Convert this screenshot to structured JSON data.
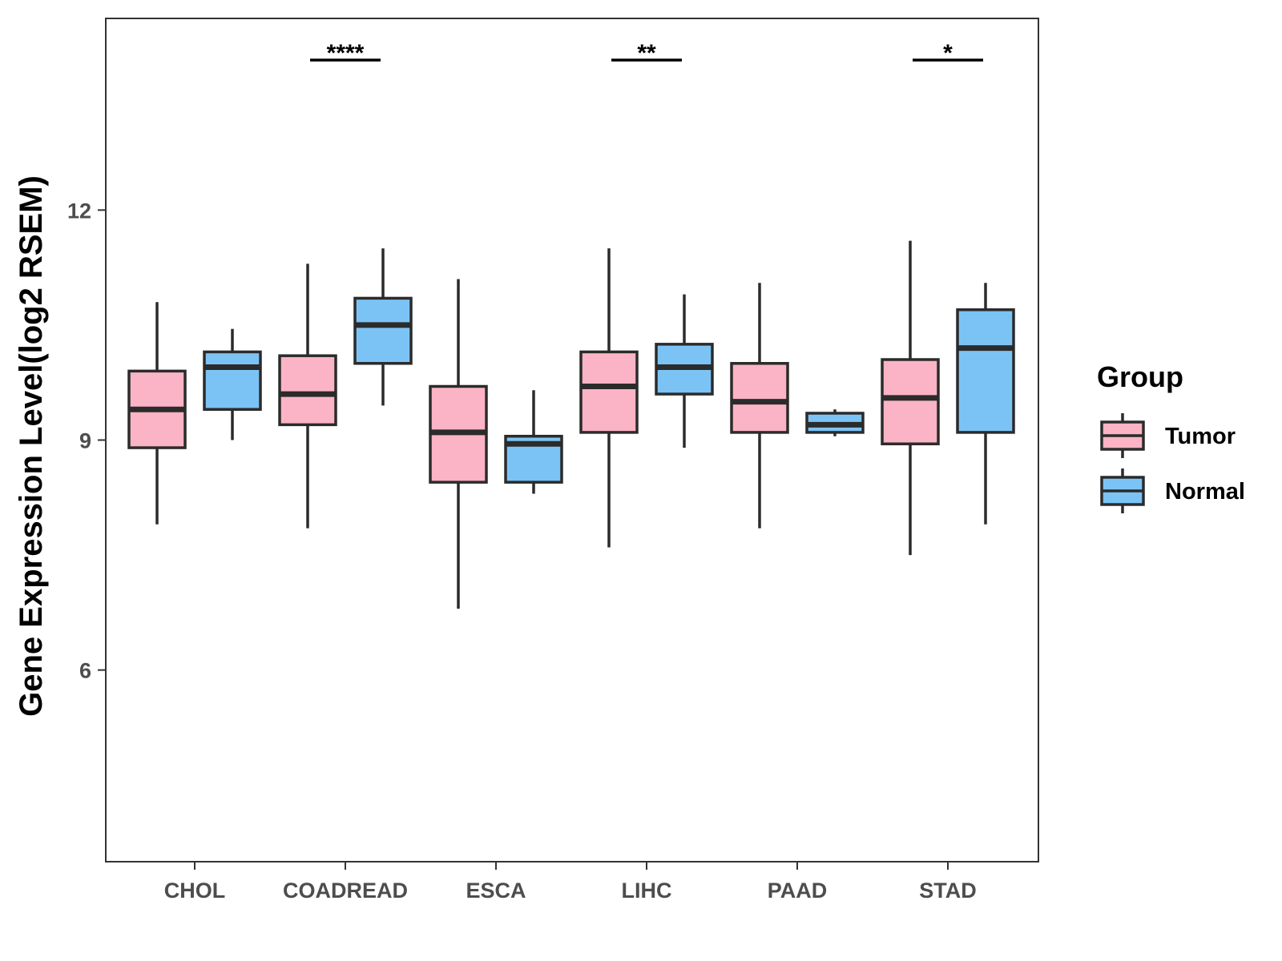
{
  "chart_data": {
    "type": "boxplot",
    "ylabel": "Gene Expression Level(log2 RSEM)",
    "xlabel": "",
    "ylim": [
      3.5,
      14.5
    ],
    "yticks": [
      6,
      9,
      12
    ],
    "grid": false,
    "categories": [
      "CHOL",
      "COADREAD",
      "ESCA",
      "LIHC",
      "PAAD",
      "STAD"
    ],
    "legend": {
      "title": "Group",
      "position": "right",
      "entries": [
        {
          "name": "Tumor",
          "color": "#fbb4c5"
        },
        {
          "name": "Normal",
          "color": "#7cc3f5"
        }
      ]
    },
    "series": [
      {
        "name": "Tumor",
        "color": "#fbb4c5",
        "boxes": [
          {
            "whisker_low": 7.9,
            "q1": 8.9,
            "median": 9.4,
            "q3": 9.9,
            "whisker_high": 10.8
          },
          {
            "whisker_low": 7.85,
            "q1": 9.2,
            "median": 9.6,
            "q3": 10.1,
            "whisker_high": 11.3
          },
          {
            "whisker_low": 6.8,
            "q1": 8.45,
            "median": 9.1,
            "q3": 9.7,
            "whisker_high": 11.1
          },
          {
            "whisker_low": 7.6,
            "q1": 9.1,
            "median": 9.7,
            "q3": 10.15,
            "whisker_high": 11.5
          },
          {
            "whisker_low": 7.85,
            "q1": 9.1,
            "median": 9.5,
            "q3": 10.0,
            "whisker_high": 11.05
          },
          {
            "whisker_low": 7.5,
            "q1": 8.95,
            "median": 9.55,
            "q3": 10.05,
            "whisker_high": 11.6
          }
        ]
      },
      {
        "name": "Normal",
        "color": "#7cc3f5",
        "boxes": [
          {
            "whisker_low": 9.0,
            "q1": 9.4,
            "median": 9.95,
            "q3": 10.15,
            "whisker_high": 10.45
          },
          {
            "whisker_low": 9.45,
            "q1": 10.0,
            "median": 10.5,
            "q3": 10.85,
            "whisker_high": 11.5
          },
          {
            "whisker_low": 8.3,
            "q1": 8.45,
            "median": 8.95,
            "q3": 9.05,
            "whisker_high": 9.65
          },
          {
            "whisker_low": 8.9,
            "q1": 9.6,
            "median": 9.95,
            "q3": 10.25,
            "whisker_high": 10.9
          },
          {
            "whisker_low": 9.05,
            "q1": 9.1,
            "median": 9.2,
            "q3": 9.35,
            "whisker_high": 9.4
          },
          {
            "whisker_low": 7.9,
            "q1": 9.1,
            "median": 10.2,
            "q3": 10.7,
            "whisker_high": 11.05
          }
        ]
      }
    ],
    "significance": [
      {
        "category": "COADREAD",
        "label": "****"
      },
      {
        "category": "LIHC",
        "label": "**"
      },
      {
        "category": "STAD",
        "label": "*"
      }
    ]
  }
}
